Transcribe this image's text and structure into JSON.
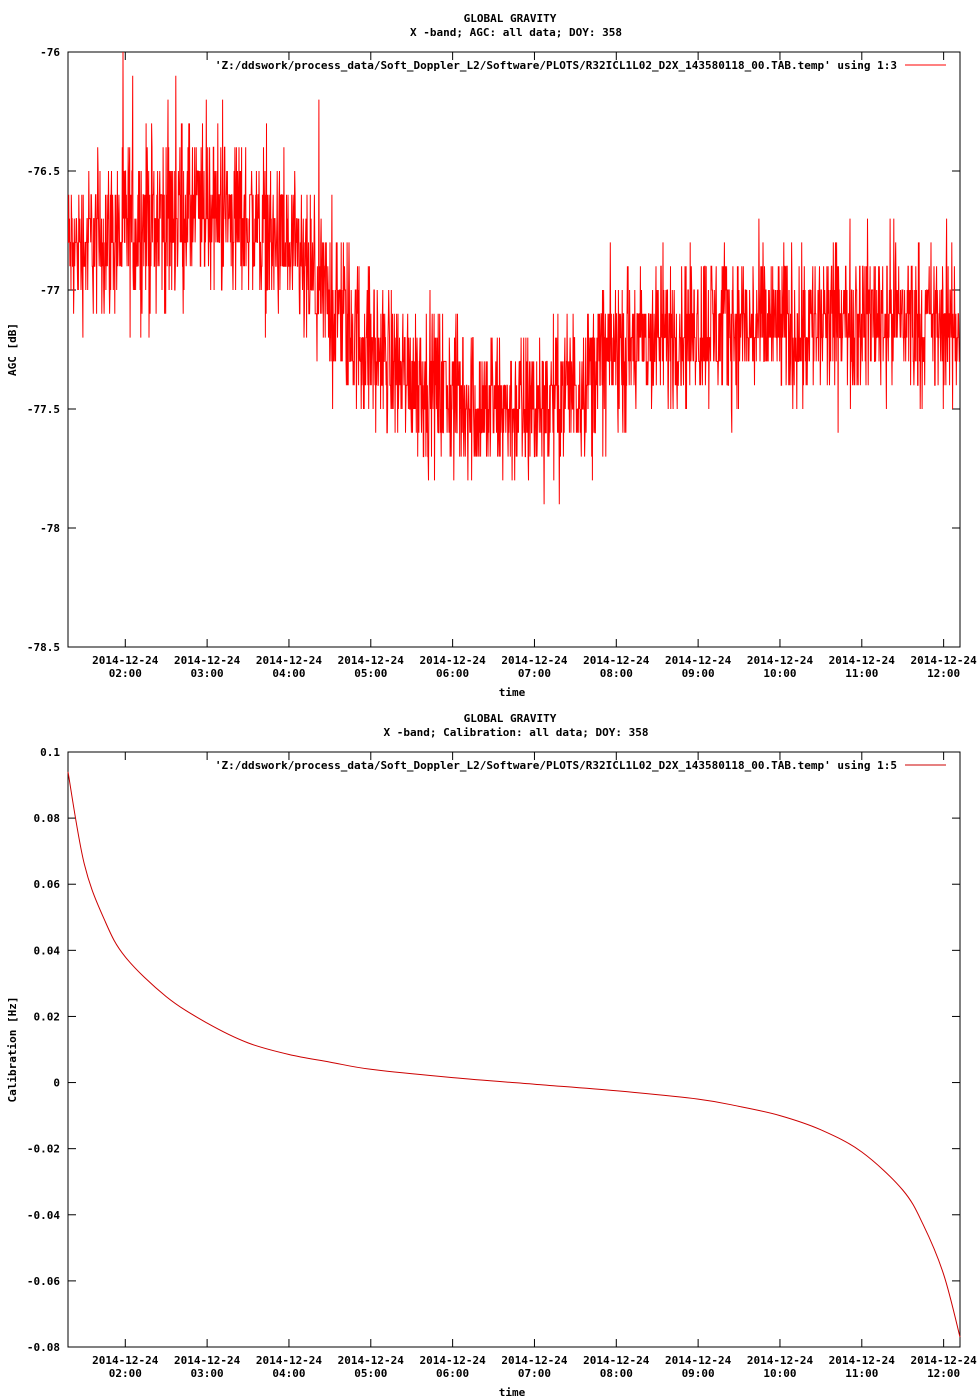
{
  "chart_data": [
    {
      "type": "line",
      "title": "GLOBAL GRAVITY",
      "subtitle": "X -band; AGC: all data; DOY: 358",
      "xlabel": "time",
      "ylabel": "AGC [dB]",
      "legend": "'Z:/ddswork/process_data/Soft_Doppler_L2/Software/PLOTS/R32ICL1L02_D2X_143580118_00.TAB.temp' using 1:3",
      "legend_position": "top-right",
      "line_color": "#ff0000",
      "xlim": [
        "2014-12-24 01:18",
        "2014-12-24 12:12"
      ],
      "ylim": [
        -78.5,
        -76
      ],
      "y_ticks": [
        "-76",
        "-76.5",
        "-77",
        "-77.5",
        "-78",
        "-78.5"
      ],
      "y_tick_values": [
        -76,
        -76.5,
        -77,
        -77.5,
        -78,
        -78.5
      ],
      "x_tick_dates": [
        "2014-12-24",
        "2014-12-24",
        "2014-12-24",
        "2014-12-24",
        "2014-12-24",
        "2014-12-24",
        "2014-12-24",
        "2014-12-24",
        "2014-12-24",
        "2014-12-24",
        "2014-12-24"
      ],
      "x_tick_times": [
        "02:00",
        "03:00",
        "04:00",
        "05:00",
        "06:00",
        "07:00",
        "08:00",
        "09:00",
        "10:00",
        "11:00",
        "12:00"
      ],
      "series": [
        {
          "x": [
            "2014-12-24 01:18",
            "2014-12-24 01:30",
            "2014-12-24 02:00",
            "2014-12-24 02:30",
            "2014-12-24 03:00",
            "2014-12-24 03:30",
            "2014-12-24 04:00",
            "2014-12-24 04:30",
            "2014-12-24 05:00",
            "2014-12-24 05:30",
            "2014-12-24 06:00",
            "2014-12-24 06:30",
            "2014-12-24 07:00",
            "2014-12-24 07:30",
            "2014-12-24 08:00",
            "2014-12-24 08:30",
            "2014-12-24 09:00",
            "2014-12-24 09:30",
            "2014-12-24 10:00",
            "2014-12-24 10:30",
            "2014-12-24 11:00",
            "2014-12-24 11:30",
            "2014-12-24 12:00",
            "2014-12-24 12:12"
          ],
          "y": [
            -76.85,
            -76.8,
            -76.75,
            -76.7,
            -76.65,
            -76.7,
            -76.85,
            -77.05,
            -77.25,
            -77.35,
            -77.45,
            -77.5,
            -77.5,
            -77.4,
            -77.25,
            -77.2,
            -77.15,
            -77.15,
            -77.15,
            -77.15,
            -77.1,
            -77.1,
            -77.15,
            -77.2
          ],
          "spread": [
            0.25,
            0.3,
            0.35,
            0.35,
            0.3,
            0.3,
            0.3,
            0.3,
            0.3,
            0.3,
            0.3,
            0.3,
            0.3,
            0.3,
            0.3,
            0.3,
            0.3,
            0.3,
            0.3,
            0.3,
            0.3,
            0.3,
            0.3,
            0.3
          ]
        }
      ]
    },
    {
      "type": "line",
      "title": "GLOBAL GRAVITY",
      "subtitle": "X -band; Calibration: all data; DOY: 358",
      "xlabel": "time",
      "ylabel": "Calibration [Hz]",
      "legend": "'Z:/ddswork/process_data/Soft_Doppler_L2/Software/PLOTS/R32ICL1L02_D2X_143580118_00.TAB.temp' using 1:5",
      "legend_position": "top-right",
      "line_color": "#cc0000",
      "xlim": [
        "2014-12-24 01:18",
        "2014-12-24 12:12"
      ],
      "ylim": [
        -0.08,
        0.1
      ],
      "y_ticks": [
        "0.1",
        "0.08",
        "0.06",
        "0.04",
        "0.02",
        "0",
        "-0.02",
        "-0.04",
        "-0.06",
        "-0.08"
      ],
      "y_tick_values": [
        0.1,
        0.08,
        0.06,
        0.04,
        0.02,
        0,
        -0.02,
        -0.04,
        -0.06,
        -0.08
      ],
      "x_tick_dates": [
        "2014-12-24",
        "2014-12-24",
        "2014-12-24",
        "2014-12-24",
        "2014-12-24",
        "2014-12-24",
        "2014-12-24",
        "2014-12-24",
        "2014-12-24",
        "2014-12-24",
        "2014-12-24"
      ],
      "x_tick_times": [
        "02:00",
        "03:00",
        "04:00",
        "05:00",
        "06:00",
        "07:00",
        "08:00",
        "09:00",
        "10:00",
        "11:00",
        "12:00"
      ],
      "series": [
        {
          "x": [
            "2014-12-24 01:18",
            "2014-12-24 01:30",
            "2014-12-24 01:45",
            "2014-12-24 02:00",
            "2014-12-24 02:30",
            "2014-12-24 03:00",
            "2014-12-24 03:30",
            "2014-12-24 04:00",
            "2014-12-24 04:30",
            "2014-12-24 05:00",
            "2014-12-24 06:00",
            "2014-12-24 07:00",
            "2014-12-24 08:00",
            "2014-12-24 09:00",
            "2014-12-24 09:30",
            "2014-12-24 10:00",
            "2014-12-24 10:30",
            "2014-12-24 11:00",
            "2014-12-24 11:30",
            "2014-12-24 11:45",
            "2014-12-24 12:00",
            "2014-12-24 12:12"
          ],
          "y": [
            0.094,
            0.066,
            0.049,
            0.038,
            0.026,
            0.018,
            0.012,
            0.0085,
            0.0062,
            0.004,
            0.0015,
            -0.0005,
            -0.0025,
            -0.005,
            -0.0072,
            -0.01,
            -0.0143,
            -0.021,
            -0.0325,
            -0.043,
            -0.058,
            -0.077
          ]
        }
      ]
    }
  ]
}
